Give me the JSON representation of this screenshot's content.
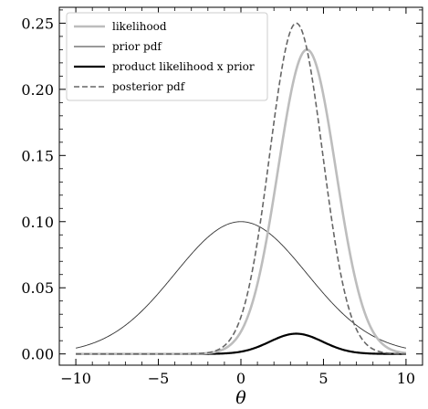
{
  "chart_data": {
    "type": "line",
    "xlabel": "θ",
    "ylabel": "",
    "xlim": [
      -11,
      11
    ],
    "ylim": [
      -0.0085,
      0.262
    ],
    "x_ticks": [
      -10,
      -5,
      0,
      5,
      10
    ],
    "x_tick_labels": [
      "−10",
      "−5",
      "0",
      "5",
      "10"
    ],
    "y_ticks": [
      0.0,
      0.05,
      0.1,
      0.15,
      0.2,
      0.25
    ],
    "y_tick_labels": [
      "0.00",
      "0.05",
      "0.10",
      "0.15",
      "0.20",
      "0.25"
    ],
    "grid": false,
    "legend_position": "top-left",
    "x_range": [
      -10,
      10
    ],
    "series": [
      {
        "name": "likelihood",
        "shape": "gaussian",
        "peak_x": 4.0,
        "peak_y": 0.23,
        "std": 1.75,
        "color": "#bdbdbd",
        "style": "solid"
      },
      {
        "name": "prior pdf",
        "shape": "gaussian",
        "peak_x": 0.0,
        "peak_y": 0.1,
        "std": 4.0,
        "color": "#333333",
        "style": "solid"
      },
      {
        "name": "product likelihood x prior",
        "shape": "gaussian",
        "peak_x": 3.35,
        "peak_y": 0.0153,
        "std": 1.6,
        "color": "#000000",
        "style": "solid"
      },
      {
        "name": "posterior pdf",
        "shape": "gaussian",
        "peak_x": 3.35,
        "peak_y": 0.25,
        "std": 1.6,
        "color": "#666666",
        "style": "dashed"
      }
    ]
  }
}
